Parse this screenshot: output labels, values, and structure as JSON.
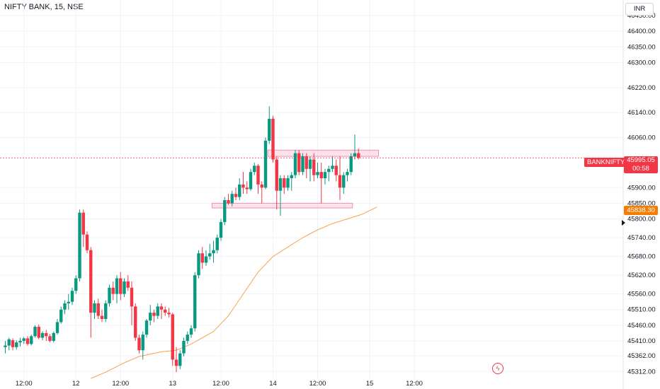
{
  "header": {
    "title": "NIFTY BANK, 15, NSE"
  },
  "toolbar": {
    "currency_label": "INR"
  },
  "badges": {
    "series_label": "BANKNIFTY",
    "last_price": "45995.05",
    "countdown": "00:58",
    "ema_value": "45838.30"
  },
  "colors": {
    "up": "#089981",
    "down": "#f23645",
    "ema": "#f7a24c",
    "zone": "#f48fb1",
    "grid": "#f0f3fa"
  },
  "icons": {
    "flash": "flash-icon",
    "axis_marker": "triangle-right-icon"
  },
  "chart_data": {
    "type": "candlestick",
    "title": "NIFTY BANK, 15, NSE",
    "xlabel": "",
    "ylabel": "",
    "ylim": [
      45290,
      46500
    ],
    "y_ticks": [
      46450,
      46400,
      46350,
      46300,
      46220,
      46140,
      46060,
      45900,
      45850,
      45800,
      45740,
      45680,
      45620,
      45560,
      45510,
      45460,
      45410,
      45362,
      45312
    ],
    "x_ticks": [
      {
        "label": "12:00",
        "index": 5
      },
      {
        "label": "12",
        "index": 19
      },
      {
        "label": "12:00",
        "index": 31
      },
      {
        "label": "13",
        "index": 45
      },
      {
        "label": "12:00",
        "index": 58
      },
      {
        "label": "14",
        "index": 72
      },
      {
        "label": "12:00",
        "index": 84
      },
      {
        "label": "15",
        "index": 98
      },
      {
        "label": "12:00",
        "index": 110
      }
    ],
    "candles": [
      [
        45390,
        45410,
        45370,
        45395
      ],
      [
        45395,
        45420,
        45380,
        45415
      ],
      [
        45412,
        45418,
        45380,
        45390
      ],
      [
        45390,
        45412,
        45382,
        45405
      ],
      [
        45405,
        45420,
        45392,
        45410
      ],
      [
        45410,
        45422,
        45400,
        45418
      ],
      [
        45418,
        45425,
        45395,
        45400
      ],
      [
        45400,
        45430,
        45395,
        45425
      ],
      [
        45425,
        45460,
        45420,
        45455
      ],
      [
        45455,
        45462,
        45415,
        45420
      ],
      [
        45420,
        45440,
        45412,
        45435
      ],
      [
        45435,
        45445,
        45410,
        45425
      ],
      [
        45425,
        45432,
        45405,
        45410
      ],
      [
        45410,
        45440,
        45405,
        45435
      ],
      [
        45435,
        45480,
        45430,
        45470
      ],
      [
        45470,
        45520,
        45465,
        45510
      ],
      [
        45510,
        45540,
        45495,
        45530
      ],
      [
        45530,
        45560,
        45510,
        45535
      ],
      [
        45535,
        45580,
        45525,
        45570
      ],
      [
        45570,
        45620,
        45560,
        45610
      ],
      [
        45610,
        45830,
        45600,
        45820
      ],
      [
        45820,
        45830,
        45710,
        45750
      ],
      [
        45750,
        45760,
        45690,
        45700
      ],
      [
        45700,
        45710,
        45420,
        45500
      ],
      [
        45500,
        45540,
        45480,
        45530
      ],
      [
        45530,
        45545,
        45480,
        45490
      ],
      [
        45490,
        45510,
        45470,
        45480
      ],
      [
        45480,
        45540,
        45470,
        45530
      ],
      [
        45530,
        45590,
        45520,
        45580
      ],
      [
        45580,
        45600,
        45540,
        45560
      ],
      [
        45560,
        45620,
        45530,
        45610
      ],
      [
        45610,
        45630,
        45540,
        45560
      ],
      [
        45560,
        45610,
        45550,
        45600
      ],
      [
        45600,
        45620,
        45570,
        45580
      ],
      [
        45580,
        45600,
        45460,
        45520
      ],
      [
        45520,
        45530,
        45410,
        45420
      ],
      [
        45420,
        45430,
        45370,
        45380
      ],
      [
        45380,
        45440,
        45350,
        45430
      ],
      [
        45430,
        45480,
        45420,
        45475
      ],
      [
        45475,
        45525,
        45460,
        45500
      ],
      [
        45500,
        45510,
        45470,
        45490
      ],
      [
        45490,
        45530,
        45480,
        45520
      ],
      [
        45520,
        45530,
        45480,
        45510
      ],
      [
        45510,
        45520,
        45490,
        45500
      ],
      [
        45500,
        45515,
        45485,
        45495
      ],
      [
        45495,
        45500,
        45330,
        45350
      ],
      [
        45350,
        45390,
        45310,
        45330
      ],
      [
        45330,
        45380,
        45320,
        45370
      ],
      [
        45370,
        45420,
        45360,
        45410
      ],
      [
        45410,
        45440,
        45400,
        45430
      ],
      [
        45430,
        45460,
        45420,
        45450
      ],
      [
        45450,
        45630,
        45440,
        45620
      ],
      [
        45620,
        45700,
        45610,
        45690
      ],
      [
        45690,
        45710,
        45640,
        45660
      ],
      [
        45660,
        45700,
        45650,
        45680
      ],
      [
        45680,
        45720,
        45670,
        45690
      ],
      [
        45690,
        45730,
        45660,
        45700
      ],
      [
        45700,
        45750,
        45690,
        45740
      ],
      [
        45740,
        45800,
        45730,
        45790
      ],
      [
        45790,
        45870,
        45780,
        45860
      ],
      [
        45860,
        45880,
        45845,
        45850
      ],
      [
        45850,
        45890,
        45840,
        45880
      ],
      [
        45880,
        45900,
        45860,
        45870
      ],
      [
        45870,
        45930,
        45860,
        45910
      ],
      [
        45910,
        45950,
        45880,
        45900
      ],
      [
        45900,
        45920,
        45880,
        45895
      ],
      [
        45895,
        45960,
        45890,
        45950
      ],
      [
        45950,
        45980,
        45940,
        45970
      ],
      [
        45970,
        45975,
        45880,
        45910
      ],
      [
        45910,
        45920,
        45850,
        45900
      ],
      [
        45900,
        46060,
        45895,
        46050
      ],
      [
        46050,
        46160,
        46040,
        46120
      ],
      [
        46120,
        46130,
        45980,
        45990
      ],
      [
        45990,
        46000,
        45830,
        45890
      ],
      [
        45890,
        45940,
        45810,
        45930
      ],
      [
        45930,
        45940,
        45880,
        45900
      ],
      [
        45900,
        45940,
        45890,
        45930
      ],
      [
        45930,
        45950,
        45890,
        45940
      ],
      [
        45940,
        46020,
        45930,
        46010
      ],
      [
        46010,
        46020,
        45940,
        45950
      ],
      [
        45950,
        46010,
        45940,
        46000
      ],
      [
        46000,
        46010,
        45930,
        45960
      ],
      [
        45960,
        46000,
        45920,
        45990
      ],
      [
        45990,
        46010,
        45920,
        45940
      ],
      [
        45940,
        45980,
        45930,
        45950
      ],
      [
        45950,
        45980,
        45850,
        45930
      ],
      [
        45930,
        45960,
        45910,
        45950
      ],
      [
        45950,
        45970,
        45920,
        45960
      ],
      [
        45960,
        46000,
        45950,
        45970
      ],
      [
        45970,
        45990,
        45920,
        45940
      ],
      [
        45940,
        46000,
        45860,
        45900
      ],
      [
        45900,
        45950,
        45880,
        45940
      ],
      [
        45940,
        45960,
        45920,
        45950
      ],
      [
        45950,
        46010,
        45940,
        46000
      ],
      [
        46000,
        46070,
        45990,
        46010
      ],
      [
        46010,
        46025,
        45990,
        45995
      ]
    ],
    "ema": [
      [
        23,
        45290
      ],
      [
        27,
        45310
      ],
      [
        32,
        45340
      ],
      [
        36,
        45360
      ],
      [
        42,
        45375
      ],
      [
        46,
        45380
      ],
      [
        50,
        45400
      ],
      [
        56,
        45440
      ],
      [
        60,
        45490
      ],
      [
        64,
        45560
      ],
      [
        68,
        45630
      ],
      [
        72,
        45680
      ],
      [
        76,
        45710
      ],
      [
        80,
        45740
      ],
      [
        84,
        45765
      ],
      [
        88,
        45785
      ],
      [
        92,
        45800
      ],
      [
        96,
        45815
      ],
      [
        100,
        45838
      ]
    ],
    "zones": [
      {
        "from": 71,
        "to": 100,
        "low": 46000,
        "high": 46020
      },
      {
        "from": 56,
        "to": 93,
        "low": 45835,
        "high": 45850
      }
    ],
    "current_price": 45995.05
  }
}
